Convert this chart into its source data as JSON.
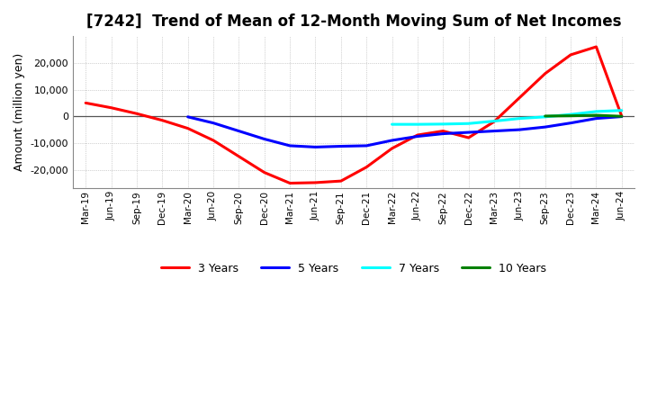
{
  "title": "[7242]  Trend of Mean of 12-Month Moving Sum of Net Incomes",
  "ylabel": "Amount (million yen)",
  "background_color": "#ffffff",
  "plot_background": "#ffffff",
  "ylim": [
    -27000,
    30000
  ],
  "yticks": [
    -20000,
    -10000,
    0,
    10000,
    20000
  ],
  "x_labels": [
    "Mar-19",
    "Jun-19",
    "Sep-19",
    "Dec-19",
    "Mar-20",
    "Jun-20",
    "Sep-20",
    "Dec-20",
    "Mar-21",
    "Jun-21",
    "Sep-21",
    "Dec-21",
    "Mar-22",
    "Jun-22",
    "Sep-22",
    "Dec-22",
    "Mar-23",
    "Jun-23",
    "Sep-23",
    "Dec-23",
    "Mar-24",
    "Jun-24"
  ],
  "series": {
    "3 Years": {
      "color": "#ff0000",
      "data_x": [
        0,
        1,
        2,
        3,
        4,
        5,
        6,
        7,
        8,
        9,
        10,
        11,
        12,
        13,
        14,
        15,
        16,
        17,
        18,
        19,
        20,
        21
      ],
      "data_y": [
        5000,
        3200,
        1000,
        -1500,
        -4500,
        -9000,
        -15000,
        -21000,
        -25000,
        -24800,
        -24200,
        -19000,
        -12000,
        -7000,
        -5500,
        -8000,
        -2000,
        7000,
        16000,
        23000,
        26000,
        0
      ]
    },
    "5 Years": {
      "color": "#0000ff",
      "data_x": [
        4,
        5,
        6,
        7,
        8,
        9,
        10,
        11,
        12,
        13,
        14,
        15,
        16,
        17,
        18,
        19,
        20,
        21
      ],
      "data_y": [
        -200,
        -2500,
        -5500,
        -8500,
        -11000,
        -11500,
        -11200,
        -11000,
        -9000,
        -7500,
        -6500,
        -6000,
        -5500,
        -5000,
        -4000,
        -2500,
        -800,
        -100
      ]
    },
    "7 Years": {
      "color": "#00ffff",
      "data_x": [
        12,
        13,
        14,
        15,
        16,
        17,
        18,
        19,
        20,
        21
      ],
      "data_y": [
        -3000,
        -3000,
        -2900,
        -2700,
        -1800,
        -800,
        -200,
        700,
        1800,
        2200
      ]
    },
    "10 Years": {
      "color": "#008000",
      "data_x": [
        18,
        19,
        20,
        21
      ],
      "data_y": [
        100,
        200,
        400,
        0
      ]
    }
  },
  "legend_order": [
    "3 Years",
    "5 Years",
    "7 Years",
    "10 Years"
  ],
  "title_fontsize": 12,
  "ylabel_fontsize": 9,
  "tick_fontsize": 8,
  "xtick_fontsize": 7.5,
  "legend_fontsize": 9,
  "linewidth": 2.2
}
